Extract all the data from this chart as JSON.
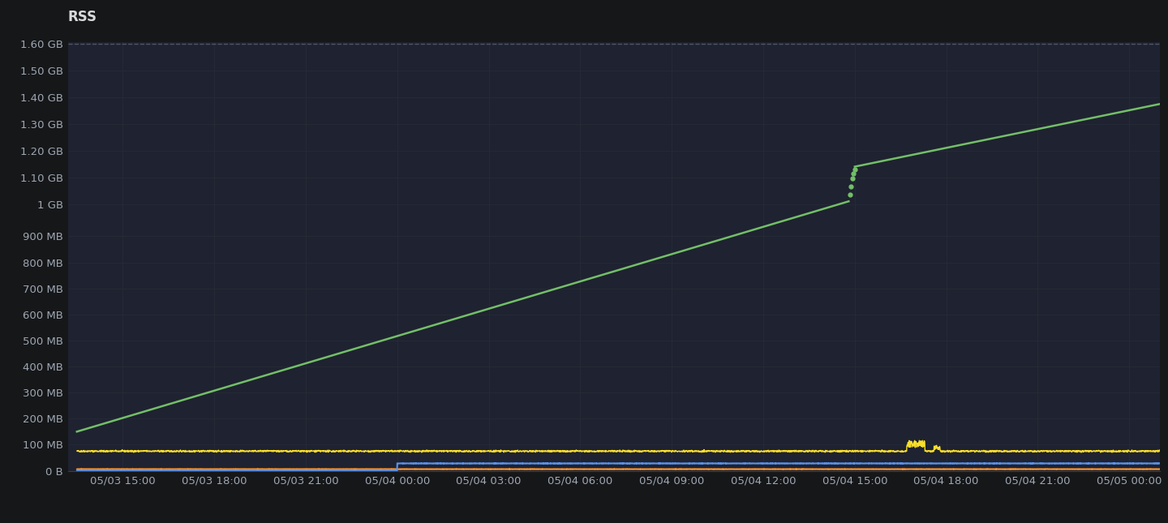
{
  "title": "RSS",
  "bg_color": "#161719",
  "plot_bg_color": "#1f2230",
  "grid_color": "#282b38",
  "text_color": "#9fa7b3",
  "title_color": "#d8d9da",
  "ylim_max": 1717986918.0,
  "yticks_labels": [
    "0 B",
    "100 MB",
    "200 MB",
    "300 MB",
    "400 MB",
    "500 MB",
    "600 MB",
    "700 MB",
    "800 MB",
    "900 MB",
    "1 GB",
    "1.10 GB",
    "1.20 GB",
    "1.30 GB",
    "1.40 GB",
    "1.50 GB",
    "1.60 GB"
  ],
  "yticks_values": [
    0,
    104857600,
    209715200,
    314572800,
    419430400,
    524288000,
    629145600,
    734003200,
    838860800,
    943718400,
    1073741824,
    1181116006,
    1288490188,
    1395864371,
    1503238554,
    1610612736,
    1717986918
  ],
  "xtick_labels": [
    "05/03 15:00",
    "05/03 18:00",
    "05/03 21:00",
    "05/04 00:00",
    "05/04 03:00",
    "05/04 06:00",
    "05/04 09:00",
    "05/04 12:00",
    "05/04 15:00",
    "05/04 18:00",
    "05/04 21:00",
    "05/05 00:00"
  ],
  "line_green_color": "#73bf69",
  "line_yellow_color": "#fade2a",
  "line_blue_color": "#5794f2",
  "line_orange_color": "#ff9830",
  "dashed_top_color": "#5c6370",
  "MB": 1048576,
  "GB": 1073741824
}
